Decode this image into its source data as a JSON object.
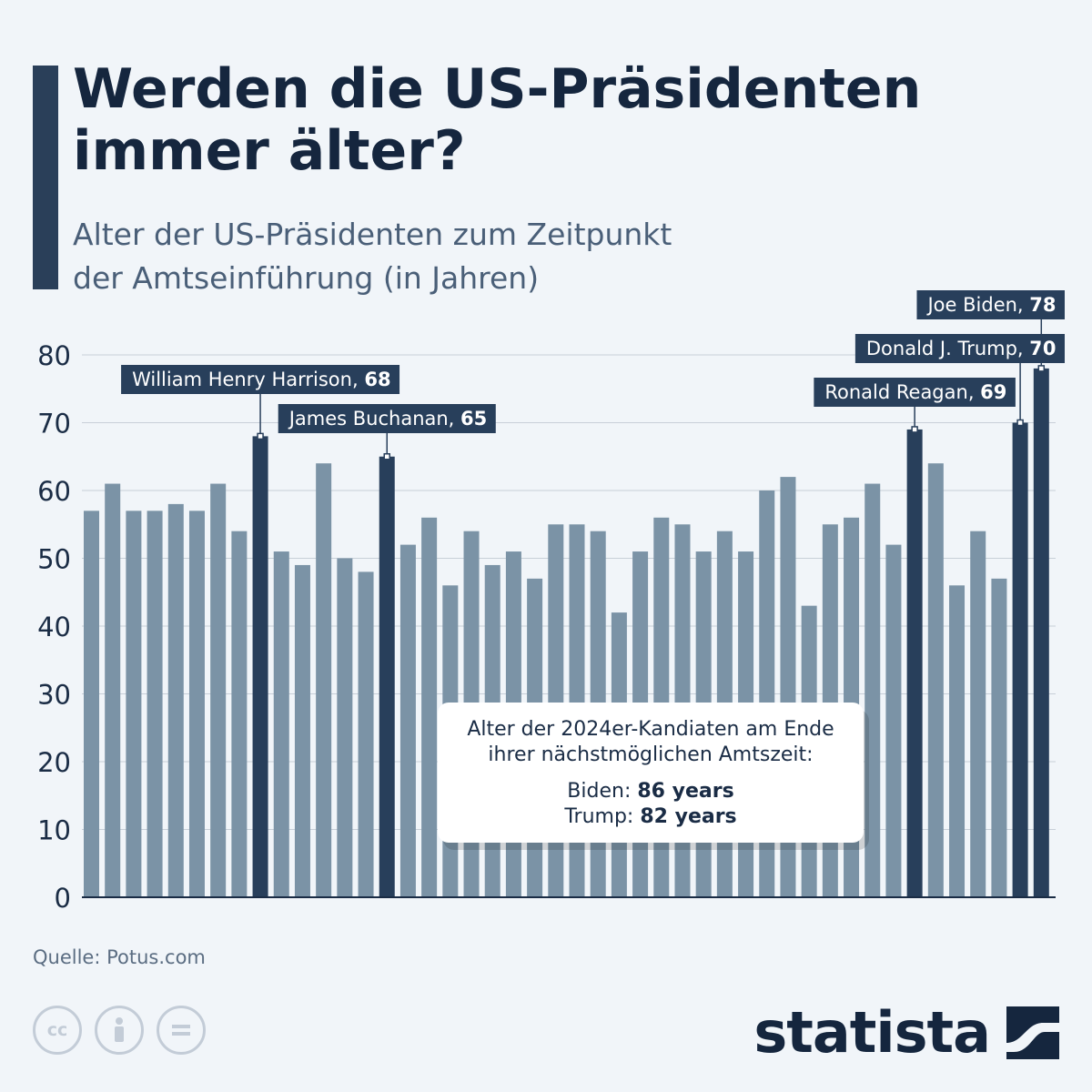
{
  "title": "Werden die US-Präsidenten\nimmer älter?",
  "subtitle": "Alter der US-Präsidenten zum Zeitpunkt\nder Amtseinführung (in Jahren)",
  "source": "Quelle: Potus.com",
  "logo_text": "statista",
  "cc_icons": [
    "cc-icon",
    "by-icon",
    "nd-icon"
  ],
  "colors": {
    "bar": "#7b93a6",
    "highlight": "#283f5b",
    "label_bg": "#283f5b",
    "grid": "#c8cfd8",
    "background": "#f1f5f9"
  },
  "info_box": {
    "line1": "Alter der 2024er-Kandiaten am Ende",
    "line2": "ihrer nächstmöglichen Amtszeit:",
    "biden_label": "Biden: ",
    "biden_value": "86 years",
    "trump_label": "Trump: ",
    "trump_value": "82 years"
  },
  "chart_data": {
    "type": "bar",
    "ylim": [
      0,
      80
    ],
    "yticks": [
      0,
      10,
      20,
      30,
      40,
      50,
      60,
      70,
      80
    ],
    "grid": true,
    "values": [
      57,
      61,
      57,
      57,
      58,
      57,
      61,
      54,
      68,
      51,
      49,
      64,
      50,
      48,
      65,
      52,
      56,
      46,
      54,
      49,
      51,
      47,
      55,
      55,
      54,
      42,
      51,
      56,
      55,
      51,
      54,
      51,
      60,
      62,
      43,
      55,
      56,
      61,
      52,
      69,
      64,
      46,
      54,
      47,
      70,
      78
    ],
    "highlights": [
      {
        "index": 8,
        "name": "William Henry Harrison",
        "value": 68
      },
      {
        "index": 14,
        "name": "James Buchanan",
        "value": 65
      },
      {
        "index": 39,
        "name": "Ronald Reagan",
        "value": 69
      },
      {
        "index": 44,
        "name": "Donald J. Trump",
        "value": 70
      },
      {
        "index": 45,
        "name": "Joe Biden",
        "value": 78
      }
    ]
  }
}
